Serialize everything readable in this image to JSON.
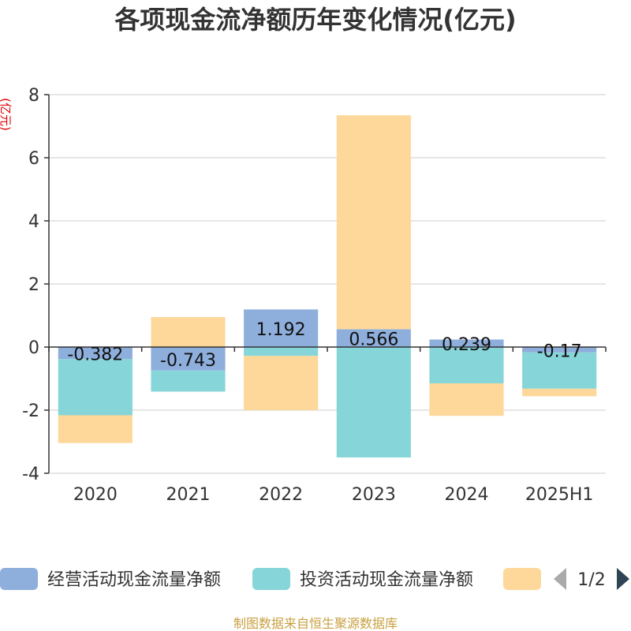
{
  "chart_data": {
    "type": "bar",
    "stacked": true,
    "title": "各项现金流净额历年变化情况(亿元)",
    "ylabel": "(亿元)",
    "xlabel": "",
    "categories": [
      "2020",
      "2021",
      "2022",
      "2023",
      "2024",
      "2025H1"
    ],
    "ylim": [
      -4,
      8
    ],
    "yticks": [
      -4,
      -2,
      0,
      2,
      4,
      6,
      8
    ],
    "grid": true,
    "series": [
      {
        "name": "经营活动现金流量净额",
        "color": "#8eaedc",
        "values": [
          -0.382,
          -0.743,
          1.192,
          0.566,
          0.239,
          -0.17
        ]
      },
      {
        "name": "投资活动现金流量净额",
        "color": "#86d5d9",
        "values": [
          -1.78,
          -0.67,
          -0.28,
          -3.5,
          -1.15,
          -1.15
        ]
      },
      {
        "name": "",
        "color": "#fdd89a",
        "values": [
          -0.88,
          0.95,
          -1.72,
          6.78,
          -1.03,
          -0.24
        ]
      }
    ],
    "data_labels": [
      "-0.382",
      "-0.743",
      "1.192",
      "0.566",
      "0.239",
      "-0.17"
    ],
    "legend_position": "bottom",
    "legend_page": "1/2"
  },
  "source": "制图数据来自恒生聚源数据库"
}
